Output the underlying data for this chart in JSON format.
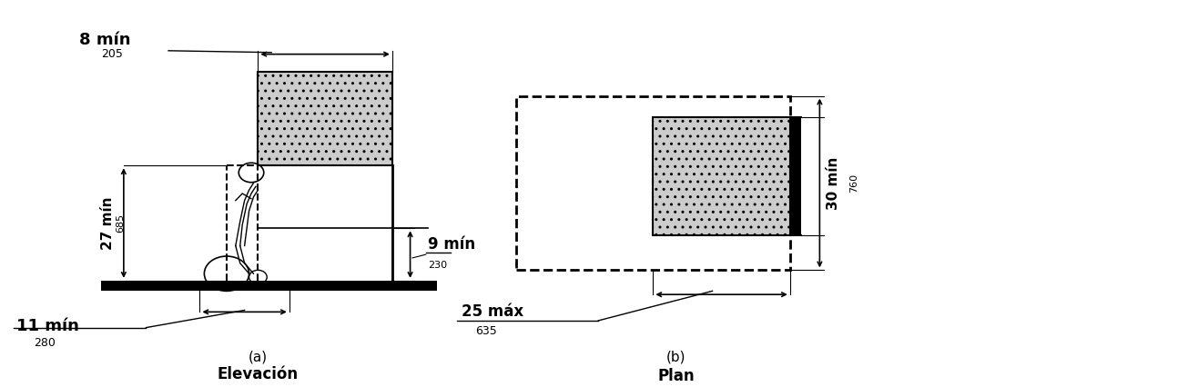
{
  "bg_color": "#ffffff",
  "line_color": "#000000",
  "panel_a": {
    "title": "(a)",
    "subtitle": "Elevación",
    "ann_8min": "8 mín",
    "ann_8sub": "205",
    "ann_27min": "27 mín",
    "ann_27sub": "685",
    "ann_9min": "9 mín",
    "ann_9sub": "230",
    "ann_11min": "11 mín",
    "ann_11sub": "280"
  },
  "panel_b": {
    "title": "(b)",
    "subtitle": "Plan",
    "ann_30min": "30 mín",
    "ann_30sub": "760",
    "ann_25max": "25 máx",
    "ann_25sub": "635"
  }
}
